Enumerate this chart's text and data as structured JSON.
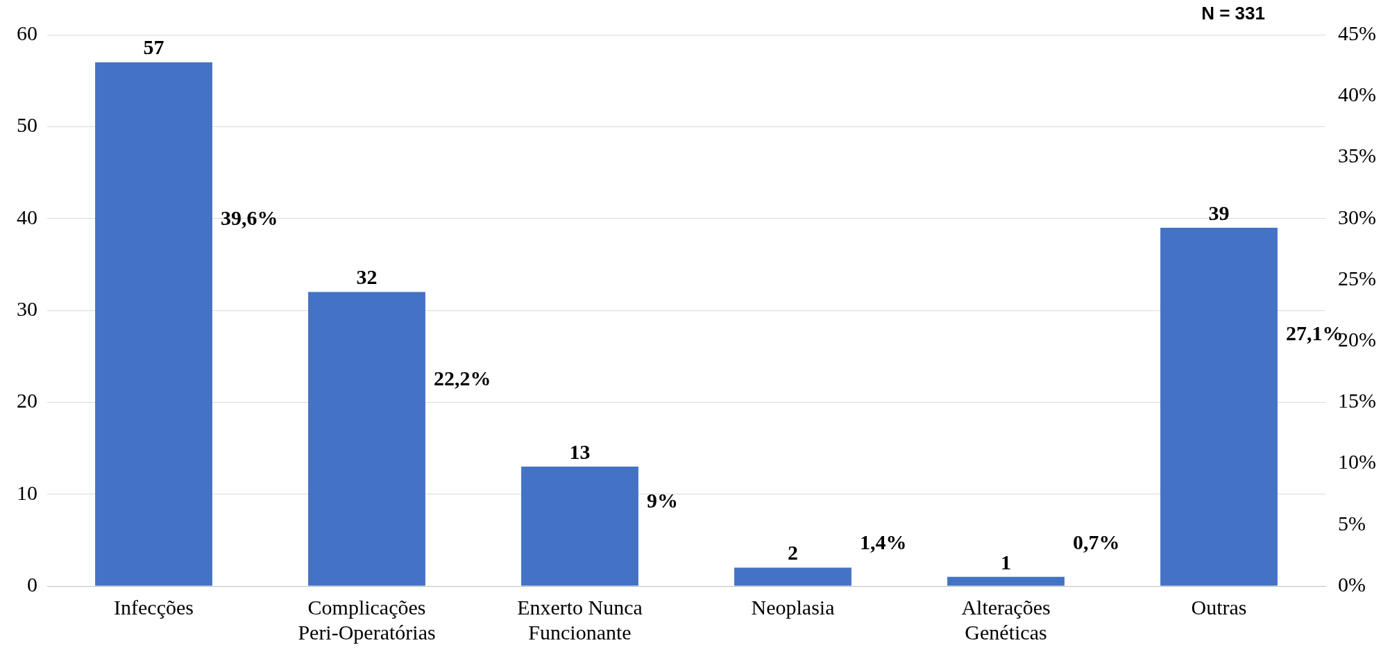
{
  "chart_data": {
    "type": "bar",
    "categories": [
      "Infecções",
      "Complicações\nPeri-Operatórias",
      "Enxerto Nunca\nFuncionante",
      "Neoplasia",
      "Alterações\nGenéticas",
      "Outras"
    ],
    "series": [
      {
        "color": "#4472c4",
        "values": [
          57,
          32,
          13,
          2,
          1,
          39
        ]
      }
    ],
    "data_labels": true,
    "ylim": [
      0,
      60
    ],
    "yticks": [
      0,
      10,
      20,
      30,
      40,
      50,
      60
    ],
    "y2lim": [
      0,
      45
    ],
    "y2ticks": [
      {
        "value": 0,
        "label": "0%"
      },
      {
        "value": 5,
        "label": "5%"
      },
      {
        "value": 10,
        "label": "10%"
      },
      {
        "value": 15,
        "label": "15%"
      },
      {
        "value": 20,
        "label": "20%"
      },
      {
        "value": 25,
        "label": "25%"
      },
      {
        "value": 30,
        "label": "30%"
      },
      {
        "value": 35,
        "label": "35%"
      },
      {
        "value": 40,
        "label": "40%"
      },
      {
        "value": 45,
        "label": "45%"
      }
    ],
    "grid": "y",
    "annotations": [
      "N = 331",
      "39,6%",
      "22,2%",
      "9%",
      "1,4%",
      "0,7%",
      "27,1%"
    ]
  }
}
